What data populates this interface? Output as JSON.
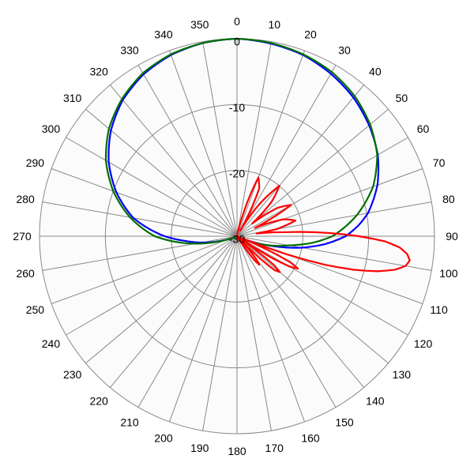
{
  "chart_data": {
    "type": "line",
    "polar": true,
    "angle_direction": "clockwise",
    "angle_zero": "top",
    "angle_ticks": [
      0,
      10,
      20,
      30,
      40,
      50,
      60,
      70,
      80,
      90,
      100,
      110,
      120,
      130,
      140,
      150,
      160,
      170,
      180,
      190,
      200,
      210,
      220,
      230,
      240,
      250,
      260,
      270,
      280,
      290,
      300,
      310,
      320,
      330,
      340,
      350
    ],
    "angle_tick_labels": [
      "0",
      "10",
      "20",
      "30",
      "40",
      "50",
      "60",
      "70",
      "80",
      "90",
      "100",
      "110",
      "120",
      "130",
      "140",
      "150",
      "160",
      "170",
      "180",
      "190",
      "200",
      "210",
      "220",
      "230",
      "240",
      "250",
      "260",
      "270",
      "280",
      "290",
      "300",
      "310",
      "320",
      "330",
      "340",
      "350"
    ],
    "radial_range": [
      -30,
      0
    ],
    "radial_ticks": [
      0,
      -10,
      -20,
      -30
    ],
    "radial_tick_labels": [
      "0",
      "-10",
      "-20",
      "-30"
    ],
    "grid": true,
    "series": [
      {
        "color": "#0000ff",
        "theta": [
          0,
          10,
          20,
          30,
          40,
          50,
          60,
          70,
          80,
          85,
          90,
          95,
          100,
          105,
          110,
          115,
          120,
          130,
          140,
          160,
          180,
          200,
          220,
          240,
          250,
          255,
          260,
          265,
          270,
          275,
          280,
          290,
          300,
          310,
          320,
          330,
          340,
          350,
          360
        ],
        "r": [
          0,
          -0.3,
          -0.7,
          -1.5,
          -2.5,
          -3.8,
          -5.3,
          -7.3,
          -9.8,
          -11.5,
          -13.5,
          -16.5,
          -20,
          -24,
          -27.5,
          -29,
          -30,
          -30,
          -30,
          -30,
          -30,
          -30,
          -30,
          -30,
          -29,
          -27,
          -24.5,
          -22,
          -19,
          -16.5,
          -14,
          -10.5,
          -7.5,
          -5,
          -3,
          -1.6,
          -0.7,
          -0.2,
          0
        ]
      },
      {
        "color": "#007000",
        "theta": [
          0,
          10,
          20,
          30,
          40,
          50,
          60,
          70,
          80,
          85,
          90,
          95,
          100,
          110,
          120,
          140,
          180,
          220,
          240,
          250,
          255,
          260,
          265,
          270,
          275,
          280,
          290,
          300,
          310,
          320,
          330,
          340,
          350,
          360
        ],
        "r": [
          0,
          -0.2,
          -0.6,
          -1.2,
          -2.2,
          -3.6,
          -5.4,
          -8,
          -11.5,
          -13.5,
          -15.5,
          -18.5,
          -22,
          -27,
          -30,
          -30,
          -30,
          -30,
          -30,
          -29,
          -26.5,
          -23.5,
          -20.5,
          -17.5,
          -15.5,
          -13.5,
          -10,
          -7,
          -4.6,
          -2.8,
          -1.4,
          -0.6,
          -0.2,
          0
        ]
      },
      {
        "color": "#ff0000",
        "theta": [
          0,
          10,
          15,
          20,
          25,
          30,
          35,
          40,
          45,
          50,
          55,
          60,
          65,
          70,
          75,
          80,
          82,
          85,
          88,
          90,
          92,
          94,
          96,
          98,
          100,
          102,
          104,
          106,
          108,
          110,
          112,
          114,
          116,
          118,
          120,
          122,
          124,
          126,
          128,
          130,
          132,
          134,
          136,
          138,
          140,
          142,
          144,
          146,
          148,
          150,
          155,
          160,
          180,
          360
        ],
        "r": [
          -30,
          -30,
          -27,
          -20.5,
          -22,
          -29,
          -24,
          -20,
          -22.5,
          -27,
          -22.5,
          -20.5,
          -27,
          -22.5,
          -20.8,
          -24,
          -27,
          -23,
          -16,
          -11.5,
          -7.5,
          -5.2,
          -4,
          -3.5,
          -4,
          -5.5,
          -8,
          -11.5,
          -16,
          -22,
          -30,
          -25,
          -21,
          -19.5,
          -20.8,
          -24,
          -30,
          -27,
          -22.8,
          -21.5,
          -22.3,
          -25,
          -30,
          -27.5,
          -25.5,
          -24.5,
          -25.5,
          -28,
          -30,
          -30,
          -30,
          -30,
          -30,
          -30
        ]
      }
    ]
  }
}
